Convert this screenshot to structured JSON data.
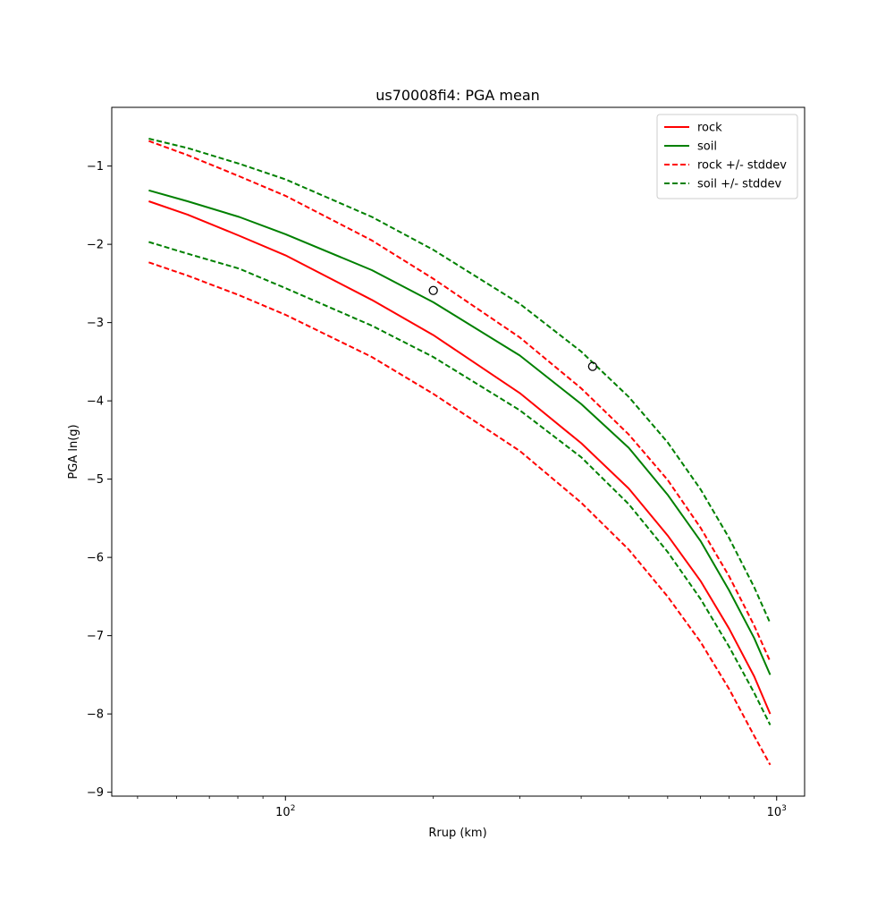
{
  "chart_data": {
    "type": "line",
    "title": "us70008fi4: PGA mean",
    "xlabel": "Rrup (km)",
    "ylabel": "PGA ln(g)",
    "x_scale": "log",
    "xlim": [
      44.3,
      1140
    ],
    "ylim": [
      -9.05,
      -0.25
    ],
    "x_tick_labels": [
      {
        "value": 100,
        "base": "10",
        "exp": "2"
      },
      {
        "value": 1000,
        "base": "10",
        "exp": "3"
      }
    ],
    "x_minor_ticks": [
      50,
      60,
      70,
      80,
      90,
      200,
      300,
      400,
      500,
      600,
      700,
      800,
      900
    ],
    "y_ticks": [
      {
        "value": -1,
        "label": "−1"
      },
      {
        "value": -2,
        "label": "−2"
      },
      {
        "value": -3,
        "label": "−3"
      },
      {
        "value": -4,
        "label": "−4"
      },
      {
        "value": -5,
        "label": "−5"
      },
      {
        "value": -6,
        "label": "−6"
      },
      {
        "value": -7,
        "label": "−7"
      },
      {
        "value": -8,
        "label": "−8"
      },
      {
        "value": -9,
        "label": "−9"
      }
    ],
    "grid": false,
    "legend_position": "top-right",
    "series": [
      {
        "name": "rock",
        "color": "#ff0000",
        "style": "solid",
        "legend": true,
        "x": [
          52.7,
          63.2,
          80.5,
          100,
          150,
          200,
          300,
          400,
          500,
          600,
          700,
          800,
          900,
          970
        ],
        "y": [
          -1.45,
          -1.62,
          -1.89,
          -2.14,
          -2.71,
          -3.16,
          -3.9,
          -4.54,
          -5.12,
          -5.72,
          -6.3,
          -6.91,
          -7.52,
          -8.0
        ]
      },
      {
        "name": "soil",
        "color": "#008000",
        "style": "solid",
        "legend": true,
        "x": [
          52.7,
          63.2,
          80.5,
          100,
          150,
          200,
          300,
          400,
          500,
          600,
          700,
          800,
          900,
          970
        ],
        "y": [
          -1.31,
          -1.45,
          -1.65,
          -1.87,
          -2.33,
          -2.74,
          -3.42,
          -4.04,
          -4.6,
          -5.2,
          -5.79,
          -6.42,
          -7.03,
          -7.5
        ]
      },
      {
        "name": "rock +/- stddev",
        "color": "#ff0000",
        "style": "dashed",
        "legend": true,
        "x": [
          52.7,
          63.2,
          80.5,
          100,
          150,
          200,
          300,
          400,
          500,
          600,
          700,
          800,
          900,
          970
        ],
        "y": [
          -0.68,
          -0.86,
          -1.13,
          -1.38,
          -1.95,
          -2.44,
          -3.19,
          -3.84,
          -4.43,
          -5.01,
          -5.62,
          -6.24,
          -6.87,
          -7.33
        ]
      },
      {
        "name": "rock +/- stddev",
        "color": "#ff0000",
        "style": "dashed",
        "legend": false,
        "x": [
          52.7,
          63.2,
          80.5,
          100,
          150,
          200,
          300,
          400,
          500,
          600,
          700,
          800,
          900,
          970
        ],
        "y": [
          -2.23,
          -2.4,
          -2.65,
          -2.9,
          -3.44,
          -3.91,
          -4.64,
          -5.3,
          -5.9,
          -6.5,
          -7.08,
          -7.68,
          -8.28,
          -8.65
        ]
      },
      {
        "name": "soil +/- stddev",
        "color": "#008000",
        "style": "dashed",
        "legend": true,
        "x": [
          52.7,
          63.2,
          80.5,
          100,
          150,
          200,
          300,
          400,
          500,
          600,
          700,
          800,
          900,
          970
        ],
        "y": [
          -0.65,
          -0.77,
          -0.97,
          -1.17,
          -1.65,
          -2.07,
          -2.76,
          -3.37,
          -3.95,
          -4.53,
          -5.13,
          -5.75,
          -6.38,
          -6.84
        ]
      },
      {
        "name": "soil +/- stddev",
        "color": "#008000",
        "style": "dashed",
        "legend": false,
        "x": [
          52.7,
          63.2,
          80.5,
          100,
          150,
          200,
          300,
          400,
          500,
          600,
          700,
          800,
          900,
          970
        ],
        "y": [
          -1.97,
          -2.12,
          -2.31,
          -2.56,
          -3.04,
          -3.44,
          -4.12,
          -4.72,
          -5.32,
          -5.93,
          -6.53,
          -7.14,
          -7.73,
          -8.14
        ]
      }
    ],
    "observations": {
      "marker": "open-circle",
      "color": "#000000",
      "points": [
        {
          "x": 200,
          "y": -2.59
        },
        {
          "x": 422,
          "y": -3.56
        }
      ]
    }
  }
}
